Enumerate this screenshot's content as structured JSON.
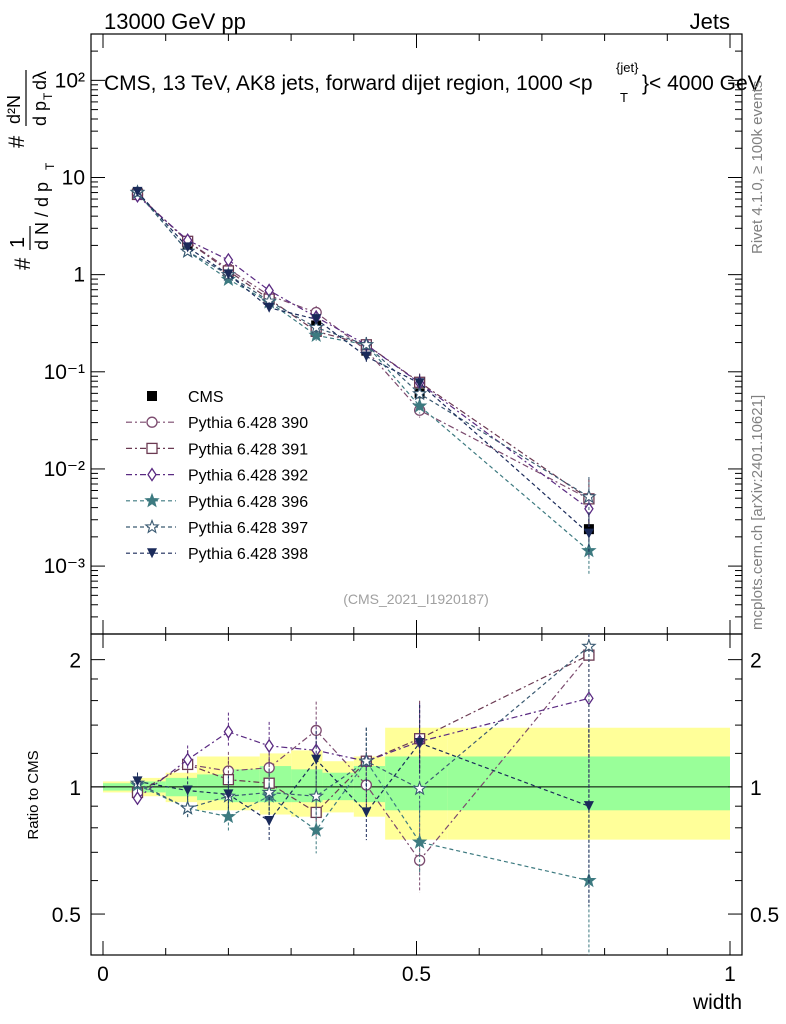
{
  "header": {
    "left": "13000 GeV pp",
    "right": "Jets",
    "plot_title": "CMS, 13 TeV, AK8 jets, forward dijet region, 1000 <p",
    "plot_title_sup": "{jet}",
    "plot_title_sub": "T",
    "plot_title_end": "}< 4000 GeV"
  },
  "side_labels": {
    "rivet": "Rivet 4.1.0, ≥ 100k events",
    "mcplots": "mcplots.cern.ch [arXiv:2401.10621]",
    "analysis": "(CMS_2021_I1920187)"
  },
  "colors": {
    "data": "#000000",
    "p390": "#7b4a6e",
    "p391": "#6b3a52",
    "p392": "#5a2a82",
    "p396": "#3d7a80",
    "p397": "#3a5a72",
    "p398": "#1a2a5a",
    "band_inner": "#99ff99",
    "band_outer": "#ffff99"
  },
  "chart_data": {
    "type": "line",
    "title": "CMS, 13 TeV, AK8 jets, forward dijet region, 1000 < pT{jet} < 4000 GeV",
    "xlabel": "width",
    "ylabel_main": "1/(dN/dpT) d²N/(dpT dλ)",
    "ylabel_ratio": "Ratio to CMS",
    "xlim": [
      0,
      1
    ],
    "ylim_main": [
      0.0002,
      300
    ],
    "yscale_main": "log",
    "ylim_ratio": [
      0.4,
      2.3
    ],
    "yscale_ratio": "log",
    "x_ticks": [
      "0",
      "0.5",
      "1"
    ],
    "main_y_ticks": [
      "10⁻³",
      "10⁻²",
      "10⁻¹",
      "1",
      "10",
      "10²"
    ],
    "ratio_y_ticks": [
      "0.5",
      "1",
      "2"
    ],
    "x": [
      0.055,
      0.135,
      0.2,
      0.265,
      0.34,
      0.42,
      0.505,
      0.775
    ],
    "data_values": [
      6.9,
      1.95,
      1.05,
      0.55,
      0.3,
      0.165,
      0.06,
      0.0024
    ],
    "bin_edges": [
      0.0,
      0.05,
      0.1,
      0.15,
      0.2,
      0.25,
      0.3,
      0.35,
      0.4,
      0.45,
      0.55,
      1.0
    ],
    "band_inner": [
      [
        0.98,
        1.02
      ],
      [
        0.97,
        1.03
      ],
      [
        0.95,
        1.05
      ],
      [
        0.93,
        1.07
      ],
      [
        0.92,
        1.1
      ],
      [
        0.92,
        1.12
      ],
      [
        0.92,
        1.1
      ],
      [
        0.93,
        1.08
      ],
      [
        0.92,
        1.12
      ],
      [
        0.88,
        1.18
      ],
      [
        0.88,
        1.18
      ]
    ],
    "band_outer": [
      [
        0.97,
        1.03
      ],
      [
        0.95,
        1.05
      ],
      [
        0.92,
        1.08
      ],
      [
        0.88,
        1.18
      ],
      [
        0.88,
        1.18
      ],
      [
        0.86,
        1.2
      ],
      [
        0.85,
        1.22
      ],
      [
        0.87,
        1.15
      ],
      [
        0.85,
        1.18
      ],
      [
        0.75,
        1.38
      ],
      [
        0.75,
        1.38
      ]
    ],
    "series": [
      {
        "name": "CMS",
        "legend": "CMS",
        "color_key": "data",
        "marker": "square-filled",
        "dash": "",
        "ratios": [
          1,
          1,
          1,
          1,
          1,
          1,
          1,
          1
        ]
      },
      {
        "name": "Pythia 6.428 390",
        "legend": "Pythia 6.428 390",
        "color_key": "p390",
        "marker": "circle-open",
        "dash": "6,3,2,3",
        "ratios": [
          0.97,
          1.13,
          1.09,
          1.11,
          1.36,
          1.01,
          0.67,
          2.05
        ]
      },
      {
        "name": "Pythia 6.428 391",
        "legend": "Pythia 6.428 391",
        "color_key": "p391",
        "marker": "square-open",
        "dash": "6,3,2,3",
        "ratios": [
          0.97,
          1.13,
          1.04,
          1.02,
          0.87,
          1.15,
          1.3,
          2.05
        ]
      },
      {
        "name": "Pythia 6.428 392",
        "legend": "Pythia 6.428 392",
        "color_key": "p392",
        "marker": "diamond-open",
        "dash": "6,3,2,3",
        "ratios": [
          0.94,
          1.16,
          1.35,
          1.25,
          1.22,
          1.15,
          1.28,
          1.62
        ]
      },
      {
        "name": "Pythia 6.428 396",
        "legend": "Pythia 6.428 396",
        "color_key": "p396",
        "marker": "star-filled",
        "dash": "4,3",
        "ratios": [
          1.01,
          0.89,
          0.85,
          0.95,
          0.79,
          1.15,
          0.74,
          0.6
        ]
      },
      {
        "name": "Pythia 6.428 397",
        "legend": "Pythia 6.428 397",
        "color_key": "p397",
        "marker": "star-open",
        "dash": "4,3",
        "ratios": [
          1.02,
          0.89,
          0.95,
          0.97,
          0.95,
          1.15,
          0.99,
          2.15
        ]
      },
      {
        "name": "Pythia 6.428 398",
        "legend": "Pythia 6.428 398",
        "color_key": "p398",
        "marker": "triangle-down-filled",
        "dash": "4,3",
        "ratios": [
          1.03,
          0.98,
          0.96,
          0.83,
          1.16,
          0.87,
          1.27,
          0.9
        ]
      }
    ]
  }
}
